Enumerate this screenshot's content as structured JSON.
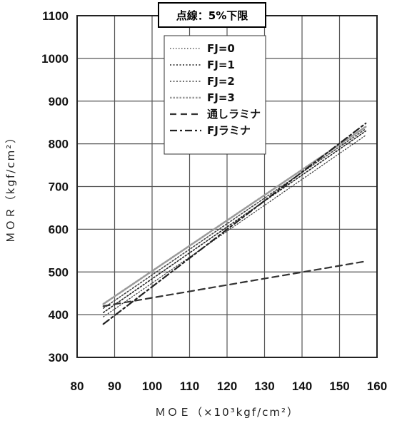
{
  "chart_data": {
    "type": "line",
    "title": "",
    "note": "点線：5%下限",
    "xlabel": "ＭＯＥ（×10³kgf/cm²）",
    "ylabel": "ＭＯＲ（kgf/cm²）",
    "xlim": [
      80,
      160
    ],
    "ylim": [
      300,
      1100
    ],
    "xticks": [
      80,
      90,
      100,
      110,
      120,
      130,
      140,
      150,
      160
    ],
    "yticks": [
      300,
      400,
      500,
      600,
      700,
      800,
      900,
      1000,
      1100
    ],
    "grid": true,
    "legend_position": "top-center",
    "series": [
      {
        "name": "FJ=0",
        "style": "dotted-thin",
        "color": "#333333",
        "x": [
          87,
          157
        ],
        "y": [
          395,
          820
        ]
      },
      {
        "name": "FJ=1",
        "style": "dotted",
        "color": "#222222",
        "x": [
          87,
          157
        ],
        "y": [
          405,
          830
        ]
      },
      {
        "name": "FJ=2",
        "style": "dotted",
        "color": "#444444",
        "x": [
          87,
          157
        ],
        "y": [
          415,
          835
        ]
      },
      {
        "name": "FJ=3",
        "style": "dotted-thick",
        "color": "#9a9a9a",
        "x": [
          87,
          157
        ],
        "y": [
          425,
          840
        ]
      },
      {
        "name": "通しラミナ",
        "style": "dashed",
        "color": "#333333",
        "x": [
          87,
          157
        ],
        "y": [
          420,
          525
        ]
      },
      {
        "name": "FJラミナ",
        "style": "dash-dot",
        "color": "#222222",
        "x": [
          87,
          157
        ],
        "y": [
          378,
          848
        ]
      }
    ]
  }
}
